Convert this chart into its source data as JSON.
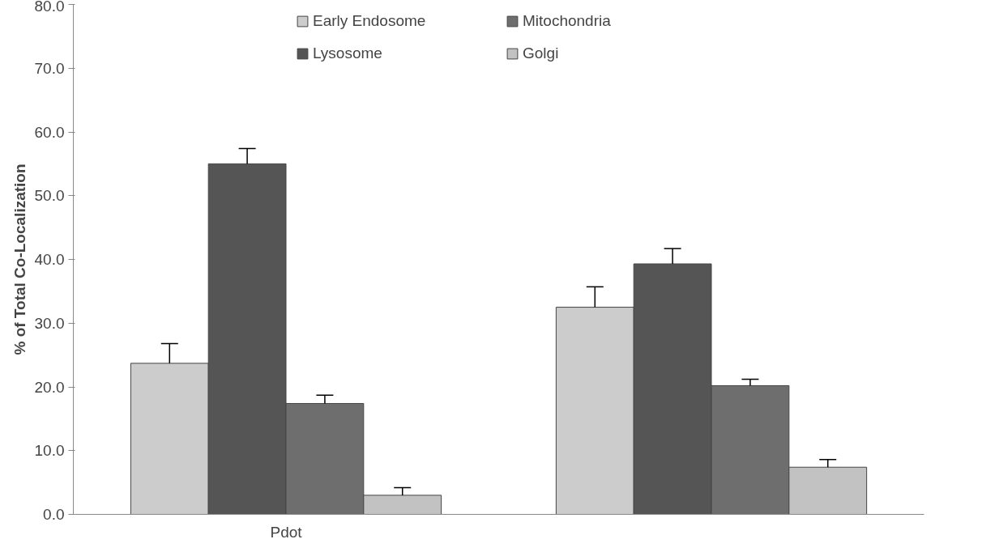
{
  "chart_data": {
    "type": "bar",
    "ylabel": "% of Total Co-Localization",
    "categories": [
      "Pdot",
      null
    ],
    "series": [
      {
        "name": "Early Endosome",
        "color": "#cccccc",
        "values": [
          23.7,
          32.5
        ],
        "errors": [
          3.1,
          3.2
        ]
      },
      {
        "name": "Lysosome",
        "color": "#555555",
        "values": [
          55.0,
          39.3
        ],
        "errors": [
          2.4,
          2.4
        ]
      },
      {
        "name": "Mitochondria",
        "color": "#6e6e6e",
        "values": [
          17.4,
          20.2
        ],
        "errors": [
          1.3,
          1.0
        ]
      },
      {
        "name": "Golgi",
        "color": "#c2c2c2",
        "values": [
          3.0,
          7.4
        ],
        "errors": [
          1.2,
          1.2
        ]
      }
    ],
    "ylim": [
      0,
      80
    ],
    "yticks": [
      {
        "value": 0,
        "label": "0.0"
      },
      {
        "value": 10,
        "label": "10.0"
      },
      {
        "value": 20,
        "label": "20.0"
      },
      {
        "value": 30,
        "label": "30.0"
      },
      {
        "value": 40,
        "label": "40.0"
      },
      {
        "value": 50,
        "label": "50.0"
      },
      {
        "value": 60,
        "label": "60.0"
      },
      {
        "value": 70,
        "label": "70.0"
      },
      {
        "value": 80,
        "label": "80.0"
      }
    ],
    "grid": false,
    "legend": "top"
  }
}
